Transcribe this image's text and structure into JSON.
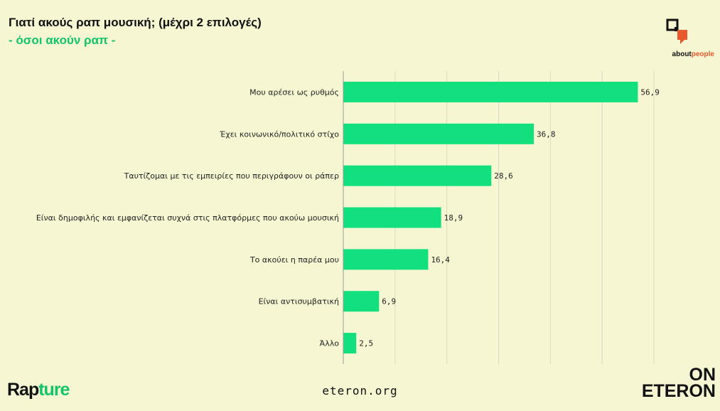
{
  "header": {
    "title": "Γιατί ακούς ραπ μουσική; (μέχρι 2 επιλογές)",
    "subtitle": "- όσοι ακούν ραπ -"
  },
  "logo": {
    "about_prefix": "about",
    "about_suffix": "people"
  },
  "footer": {
    "brand_left_prefix": "Rap",
    "brand_left_suffix": "ture",
    "website": "eteron.org",
    "brand_right_line1": "ON",
    "brand_right_line2": "ETERON"
  },
  "colors": {
    "background": "#f7f6d2",
    "bar": "#12e07f",
    "accent_green": "#12c46a",
    "accent_orange": "#e85a2c"
  },
  "chart_data": {
    "type": "bar",
    "orientation": "horizontal",
    "categories": [
      "Μου αρέσει ως ρυθμός",
      "Έχει κοινωνικό/πολιτικό στίχο",
      "Ταυτίζομαι με τις εμπειρίες που περιγράφουν οι ράπερ",
      "Είναι δημοφιλής και εμφανίζεται συχνά στις πλατφόρμες που ακούω μουσική",
      "Το ακούει η παρέα μου",
      "Είναι αντισυμβατική",
      "Άλλο"
    ],
    "values": [
      56.9,
      36.8,
      28.6,
      18.9,
      16.4,
      6.9,
      2.5
    ],
    "value_labels": [
      "56,9",
      "36,8",
      "28,6",
      "18,9",
      "16,4",
      "6,9",
      "2,5"
    ],
    "xlim": [
      0,
      60
    ],
    "grid": true,
    "title": "Γιατί ακούς ραπ μουσική; (μέχρι 2 επιλογές)",
    "subtitle": "- όσοι ακούν ραπ -"
  }
}
